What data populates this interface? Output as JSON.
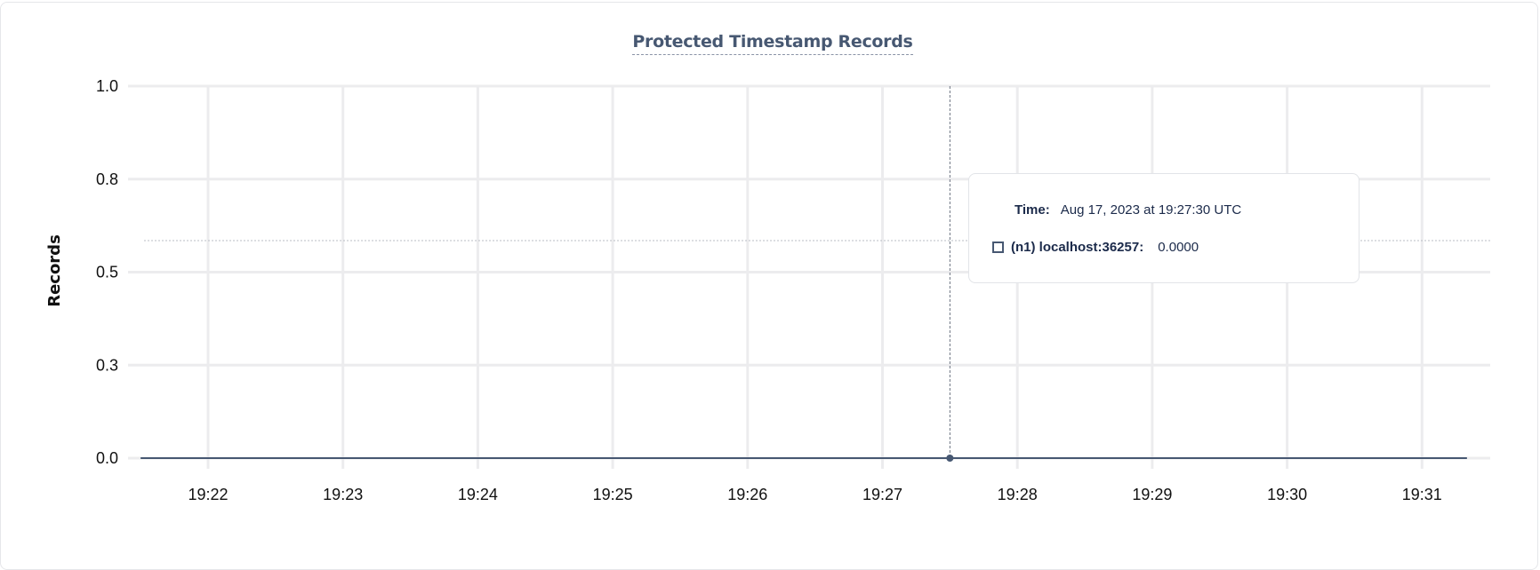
{
  "chart_data": {
    "type": "line",
    "title": "Protected Timestamp Records",
    "xlabel": "",
    "ylabel": "Records",
    "ylim": [
      0,
      1
    ],
    "yticks": [
      0,
      0.25,
      0.5,
      0.75,
      1
    ],
    "ytick_labels": [
      "0.0",
      "0.3",
      "0.5",
      "0.8",
      "1.0"
    ],
    "xticks": [
      "19:22",
      "19:23",
      "19:24",
      "19:25",
      "19:26",
      "19:27",
      "19:28",
      "19:29",
      "19:30",
      "19:31"
    ],
    "grid": true,
    "series": [
      {
        "name": "(n1) localhost:36257",
        "color": "#475872",
        "x": [
          "19:21:30",
          "19:22:00",
          "19:22:30",
          "19:23:00",
          "19:23:30",
          "19:24:00",
          "19:24:30",
          "19:25:00",
          "19:25:30",
          "19:26:00",
          "19:26:30",
          "19:27:00",
          "19:27:30",
          "19:28:00",
          "19:28:30",
          "19:29:00",
          "19:29:30",
          "19:30:00",
          "19:30:30",
          "19:31:00",
          "19:31:20"
        ],
        "values": [
          0,
          0,
          0,
          0,
          0,
          0,
          0,
          0,
          0,
          0,
          0,
          0,
          0,
          0,
          0,
          0,
          0,
          0,
          0,
          0,
          0
        ]
      }
    ],
    "hover": {
      "x": "19:27:30"
    }
  },
  "tooltip": {
    "time_label": "Time:",
    "time_value": "Aug 17, 2023 at 19:27:30 UTC",
    "series_label": "(n1) localhost:36257:",
    "series_value": "0.0000"
  }
}
